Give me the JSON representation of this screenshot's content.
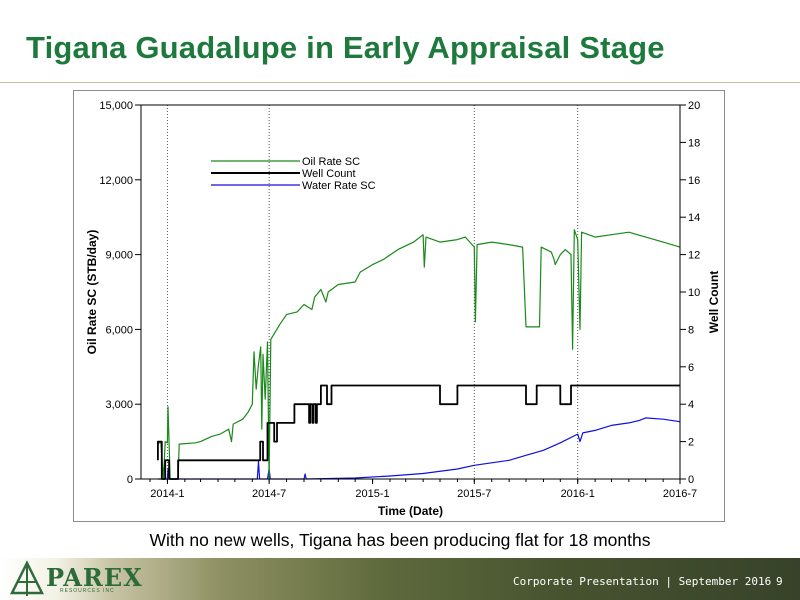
{
  "slide": {
    "title": "Tigana Guadalupe in Early Appraisal Stage",
    "subtitle": "With no new wells, Tigana has been producing flat for 18 months",
    "footer_text": "Corporate Presentation | September 2016",
    "page_number": "9",
    "logo_text": "PAREX",
    "logo_subtext": "RESOURCES INC"
  },
  "colors": {
    "title": "#1e7a3c",
    "oil": "#1a8a1a",
    "water": "#1010dd",
    "wells": "#000000"
  },
  "chart_data": {
    "type": "line",
    "xlabel": "Time (Date)",
    "ylabel_left": "Oil Rate SC (STB/day)",
    "ylabel_right": "Well Count",
    "x_range": [
      "2013-11-15",
      "2016-07-01"
    ],
    "x_ticks": [
      "2014-1",
      "2014-7",
      "2015-1",
      "2015-7",
      "2016-1",
      "2016-7"
    ],
    "x_tick_dates": [
      "2014-01-01",
      "2014-07-01",
      "2015-01-01",
      "2015-07-01",
      "2016-01-01",
      "2016-07-01"
    ],
    "vertical_dotted_lines": [
      "2014-01-01",
      "2014-07-01",
      "2015-07-01",
      "2016-01-01"
    ],
    "y_left_range": [
      0,
      15000
    ],
    "y_left_ticks": [
      "0",
      "3,000",
      "6,000",
      "9,000",
      "12,000",
      "15,000"
    ],
    "y_right_range": [
      0,
      20
    ],
    "y_right_ticks": [
      "0",
      "2",
      "4",
      "6",
      "8",
      "10",
      "12",
      "14",
      "16",
      "18",
      "20"
    ],
    "legend_position": "top-left",
    "series": [
      {
        "name": "Oil Rate SC",
        "axis": "left",
        "color": "#1a8a1a",
        "points": [
          [
            "2013-12-15",
            1400
          ],
          [
            "2013-12-20",
            1500
          ],
          [
            "2013-12-25",
            0
          ],
          [
            "2013-12-28",
            1500
          ],
          [
            "2014-01-01",
            1450
          ],
          [
            "2014-01-02",
            2900
          ],
          [
            "2014-01-04",
            1400
          ],
          [
            "2014-01-06",
            0
          ],
          [
            "2014-01-20",
            0
          ],
          [
            "2014-01-22",
            1400
          ],
          [
            "2014-02-20",
            1450
          ],
          [
            "2014-03-01",
            1500
          ],
          [
            "2014-03-20",
            1700
          ],
          [
            "2014-04-05",
            1800
          ],
          [
            "2014-04-20",
            2000
          ],
          [
            "2014-04-25",
            1500
          ],
          [
            "2014-04-28",
            2200
          ],
          [
            "2014-05-15",
            2400
          ],
          [
            "2014-05-25",
            2700
          ],
          [
            "2014-06-01",
            3000
          ],
          [
            "2014-06-04",
            5100
          ],
          [
            "2014-06-08",
            3600
          ],
          [
            "2014-06-12",
            4600
          ],
          [
            "2014-06-16",
            5300
          ],
          [
            "2014-06-18",
            2000
          ],
          [
            "2014-06-20",
            5000
          ],
          [
            "2014-06-24",
            3200
          ],
          [
            "2014-06-28",
            5500
          ],
          [
            "2014-07-01",
            0
          ],
          [
            "2014-07-04",
            5600
          ],
          [
            "2014-07-20",
            6200
          ],
          [
            "2014-08-01",
            6600
          ],
          [
            "2014-08-20",
            6700
          ],
          [
            "2014-09-01",
            7000
          ],
          [
            "2014-09-15",
            6800
          ],
          [
            "2014-09-20",
            7300
          ],
          [
            "2014-10-01",
            7600
          ],
          [
            "2014-10-10",
            7100
          ],
          [
            "2014-10-14",
            7500
          ],
          [
            "2014-11-01",
            7800
          ],
          [
            "2014-12-01",
            7900
          ],
          [
            "2014-12-10",
            8300
          ],
          [
            "2015-01-01",
            8600
          ],
          [
            "2015-01-20",
            8800
          ],
          [
            "2015-02-15",
            9200
          ],
          [
            "2015-03-15",
            9500
          ],
          [
            "2015-04-01",
            9800
          ],
          [
            "2015-04-03",
            8500
          ],
          [
            "2015-04-06",
            9700
          ],
          [
            "2015-05-01",
            9500
          ],
          [
            "2015-06-01",
            9600
          ],
          [
            "2015-06-15",
            9700
          ],
          [
            "2015-07-01",
            9300
          ],
          [
            "2015-07-03",
            6300
          ],
          [
            "2015-07-06",
            9400
          ],
          [
            "2015-08-01",
            9500
          ],
          [
            "2015-09-01",
            9400
          ],
          [
            "2015-09-25",
            9300
          ],
          [
            "2015-10-01",
            6100
          ],
          [
            "2015-10-25",
            6100
          ],
          [
            "2015-10-28",
            9300
          ],
          [
            "2015-11-15",
            9100
          ],
          [
            "2015-11-20",
            8800
          ],
          [
            "2015-11-22",
            8600
          ],
          [
            "2015-12-01",
            9000
          ],
          [
            "2015-12-10",
            9200
          ],
          [
            "2015-12-20",
            9000
          ],
          [
            "2015-12-23",
            5200
          ],
          [
            "2015-12-26",
            10000
          ],
          [
            "2016-01-01",
            9600
          ],
          [
            "2016-01-05",
            6000
          ],
          [
            "2016-01-08",
            9900
          ],
          [
            "2016-02-01",
            9700
          ],
          [
            "2016-03-01",
            9800
          ],
          [
            "2016-04-01",
            9900
          ],
          [
            "2016-05-01",
            9700
          ],
          [
            "2016-06-01",
            9500
          ],
          [
            "2016-07-01",
            9300
          ]
        ]
      },
      {
        "name": "Well Count",
        "axis": "right",
        "color": "#000000",
        "points": [
          [
            "2013-12-15",
            1
          ],
          [
            "2013-12-15",
            2
          ],
          [
            "2013-12-22",
            2
          ],
          [
            "2013-12-22",
            0
          ],
          [
            "2013-12-28",
            0
          ],
          [
            "2013-12-28",
            1
          ],
          [
            "2014-01-04",
            1
          ],
          [
            "2014-01-04",
            0
          ],
          [
            "2014-01-20",
            0
          ],
          [
            "2014-01-20",
            1
          ],
          [
            "2014-06-15",
            1
          ],
          [
            "2014-06-15",
            2
          ],
          [
            "2014-06-20",
            2
          ],
          [
            "2014-06-20",
            1
          ],
          [
            "2014-06-28",
            1
          ],
          [
            "2014-06-28",
            3
          ],
          [
            "2014-07-10",
            3
          ],
          [
            "2014-07-10",
            2
          ],
          [
            "2014-07-15",
            2
          ],
          [
            "2014-07-15",
            3
          ],
          [
            "2014-08-15",
            3
          ],
          [
            "2014-08-15",
            4
          ],
          [
            "2014-09-10",
            4
          ],
          [
            "2014-09-10",
            3
          ],
          [
            "2014-09-12",
            3
          ],
          [
            "2014-09-12",
            4
          ],
          [
            "2014-09-16",
            4
          ],
          [
            "2014-09-16",
            3
          ],
          [
            "2014-09-18",
            3
          ],
          [
            "2014-09-18",
            4
          ],
          [
            "2014-09-22",
            4
          ],
          [
            "2014-09-22",
            3
          ],
          [
            "2014-09-24",
            3
          ],
          [
            "2014-09-24",
            4
          ],
          [
            "2014-10-01",
            4
          ],
          [
            "2014-10-01",
            5
          ],
          [
            "2014-10-12",
            5
          ],
          [
            "2014-10-12",
            4
          ],
          [
            "2014-10-20",
            4
          ],
          [
            "2014-10-20",
            5
          ],
          [
            "2015-05-01",
            5
          ],
          [
            "2015-05-01",
            4
          ],
          [
            "2015-06-01",
            4
          ],
          [
            "2015-06-01",
            5
          ],
          [
            "2015-10-01",
            5
          ],
          [
            "2015-10-01",
            4
          ],
          [
            "2015-10-20",
            4
          ],
          [
            "2015-10-20",
            5
          ],
          [
            "2015-12-01",
            5
          ],
          [
            "2015-12-01",
            4
          ],
          [
            "2015-12-20",
            4
          ],
          [
            "2015-12-20",
            5
          ],
          [
            "2016-07-01",
            5
          ]
        ]
      },
      {
        "name": "Water Rate SC",
        "axis": "left",
        "color": "#1010dd",
        "points": [
          [
            "2013-12-15",
            0
          ],
          [
            "2014-01-01",
            0
          ],
          [
            "2014-01-02",
            400
          ],
          [
            "2014-01-04",
            0
          ],
          [
            "2014-06-10",
            0
          ],
          [
            "2014-06-12",
            700
          ],
          [
            "2014-06-14",
            0
          ],
          [
            "2014-06-28",
            0
          ],
          [
            "2014-07-01",
            400
          ],
          [
            "2014-07-03",
            0
          ],
          [
            "2014-09-01",
            0
          ],
          [
            "2014-09-03",
            200
          ],
          [
            "2014-09-05",
            0
          ],
          [
            "2014-12-01",
            40
          ],
          [
            "2015-02-01",
            120
          ],
          [
            "2015-04-01",
            220
          ],
          [
            "2015-06-01",
            400
          ],
          [
            "2015-07-01",
            550
          ],
          [
            "2015-08-01",
            650
          ],
          [
            "2015-09-01",
            750
          ],
          [
            "2015-10-01",
            950
          ],
          [
            "2015-11-01",
            1150
          ],
          [
            "2015-12-01",
            1450
          ],
          [
            "2016-01-01",
            1800
          ],
          [
            "2016-01-05",
            1500
          ],
          [
            "2016-01-10",
            1850
          ],
          [
            "2016-02-01",
            1950
          ],
          [
            "2016-03-01",
            2150
          ],
          [
            "2016-04-01",
            2250
          ],
          [
            "2016-04-20",
            2350
          ],
          [
            "2016-05-01",
            2450
          ],
          [
            "2016-06-01",
            2400
          ],
          [
            "2016-07-01",
            2300
          ]
        ]
      }
    ]
  }
}
